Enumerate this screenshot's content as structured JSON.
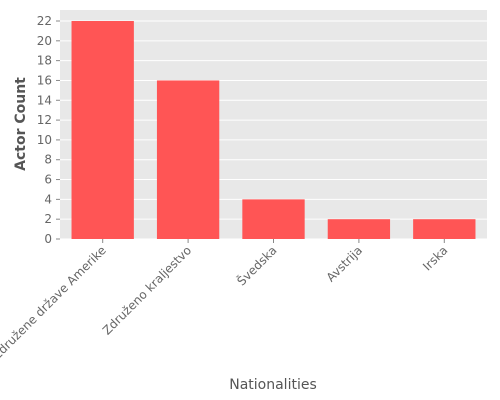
{
  "chart_data": {
    "type": "bar",
    "categories": [
      "Združene države Amerike",
      "Združeno kraljestvo",
      "Švedska",
      "Avstrija",
      "Irska"
    ],
    "values": [
      22,
      16,
      4,
      2,
      2
    ],
    "xlabel": "Nationalities",
    "ylabel": "Actor Count",
    "ylim": [
      0,
      22
    ],
    "yticks": [
      0,
      2,
      4,
      6,
      8,
      10,
      12,
      14,
      16,
      18,
      20,
      22
    ],
    "grid": true,
    "bar_color": "#ff5555",
    "plot_background": "#e8e8e8",
    "grid_color": "#ffffff"
  }
}
